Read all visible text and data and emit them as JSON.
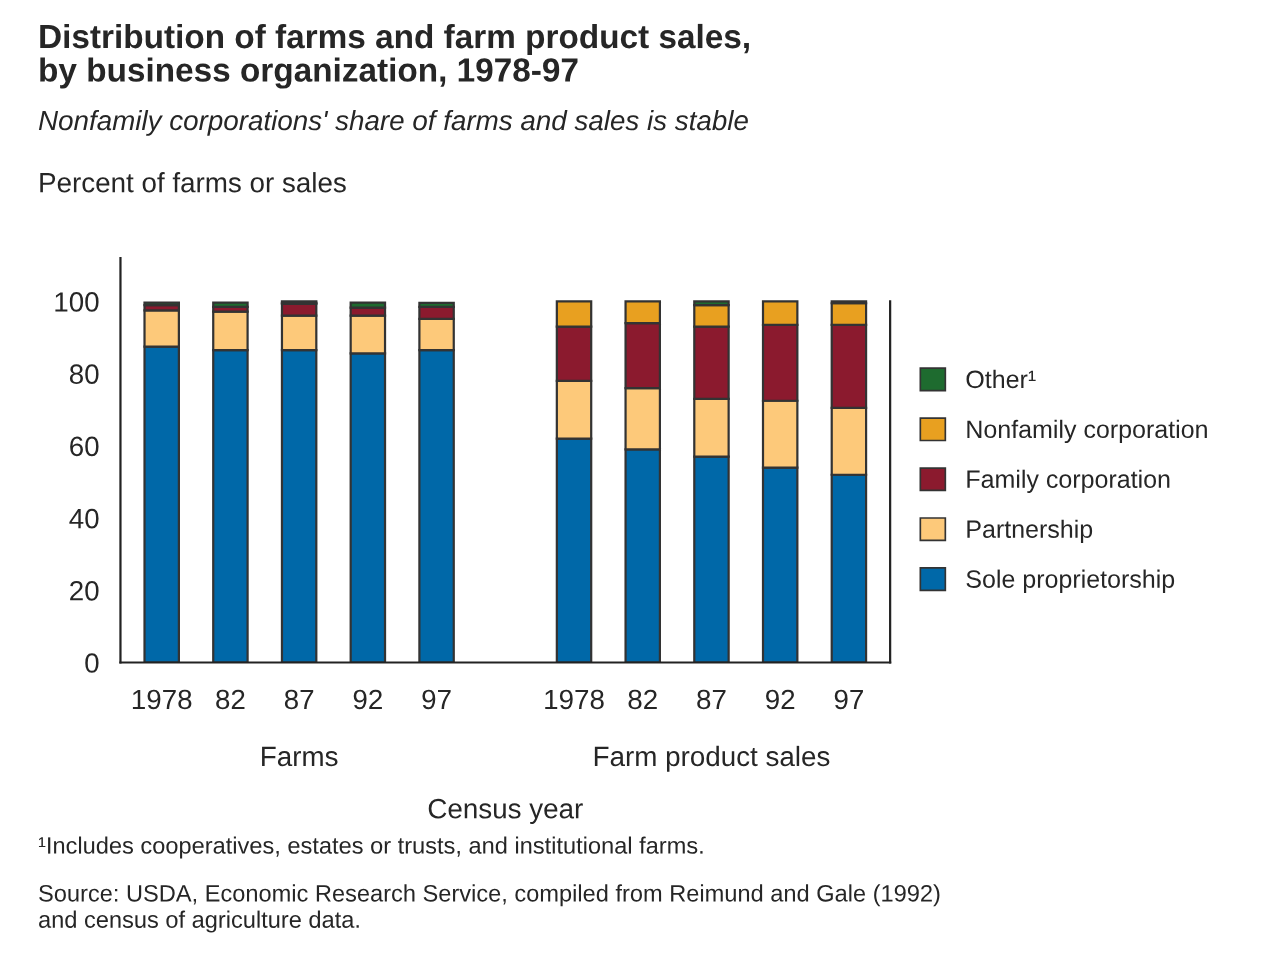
{
  "chart_data": {
    "type": "bar",
    "stacked": true,
    "title": "Distribution of farms and farm product sales,\nby business organization, 1978-97",
    "subtitle": "Nonfamily corporations' share of farms and sales is stable",
    "ylabel": "Percent of farms or sales",
    "xlabel": "Census year",
    "categories": [
      "1978",
      "82",
      "87",
      "92",
      "97",
      null,
      "1978",
      "82",
      "87",
      "92",
      "97"
    ],
    "series": [
      {
        "name": "Sole proprietorship",
        "color": "#0068a8",
        "values": [
          87.5,
          86.5,
          86.5,
          85.6,
          86.5,
          null,
          62,
          59,
          57,
          54,
          52
        ]
      },
      {
        "name": "Partnership",
        "color": "#fdc97a",
        "values": [
          10,
          10.7,
          9.6,
          10.5,
          8.7,
          null,
          16,
          17,
          16,
          18.5,
          18.5
        ]
      },
      {
        "name": "Family corporation",
        "color": "#8b1a2e",
        "values": [
          1.5,
          1.3,
          3.2,
          2.2,
          3.3,
          null,
          15,
          18,
          20,
          21,
          23
        ]
      },
      {
        "name": "Nonfamily corporation",
        "color": "#e8a020",
        "values": [
          null,
          null,
          0.3,
          null,
          null,
          null,
          7,
          6,
          6,
          6.5,
          6
        ]
      },
      {
        "name": "Other¹",
        "color": "#1e6b2f",
        "values": [
          0.7,
          1.2,
          0.4,
          1.4,
          1.1,
          null,
          null,
          null,
          1,
          null,
          0.5
        ]
      }
    ],
    "ylim": [
      0,
      112
    ],
    "yticks": [
      0,
      20,
      40,
      60,
      80,
      100
    ],
    "grid": false,
    "legend": "right",
    "annotations": [
      "Farms",
      "Farm product sales",
      "¹Includes cooperatives, estates or trusts, and institutional farms.",
      "Source: USDA, Economic Research Service, compiled from Reimund and Gale (1992)\nand census of agriculture data."
    ]
  }
}
